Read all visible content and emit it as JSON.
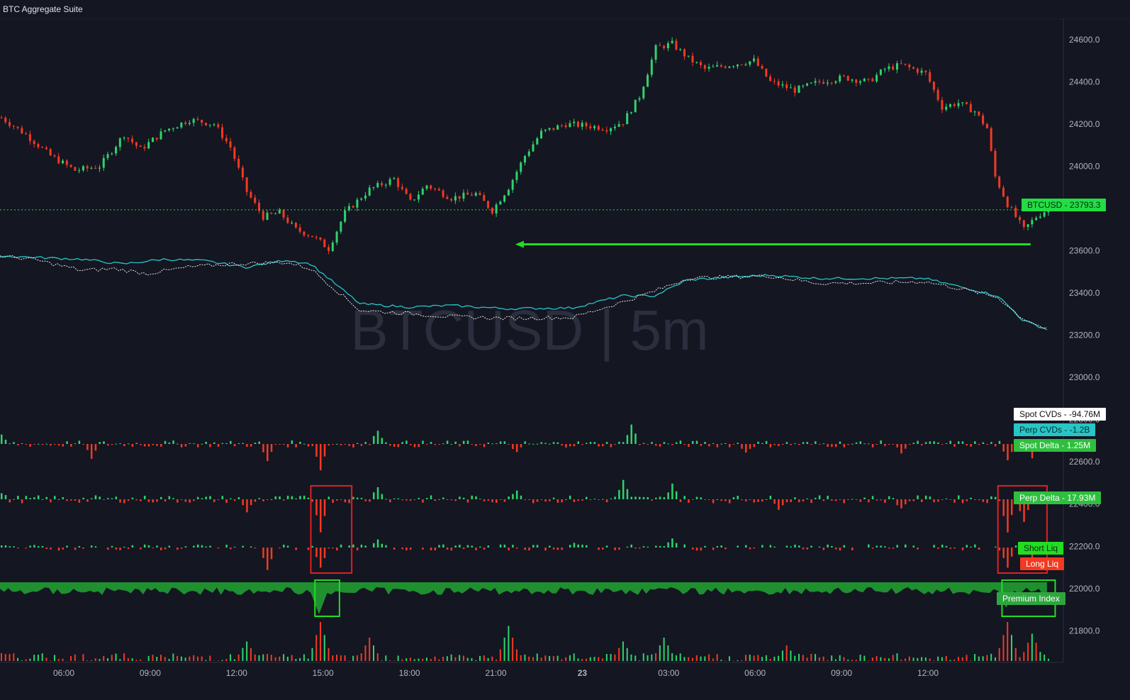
{
  "window": {
    "title": "BTC Aggregate Suite"
  },
  "watermark": "BTCUSD | 5m",
  "colors": {
    "background": "#141622",
    "up": "#2fd36b",
    "down": "#f23a22",
    "perp_cvd": "#26c6c6",
    "spot_cvd": "#e6e6e6",
    "premium_fill": "#1f8f2f",
    "highlight_red": "#e02020",
    "highlight_green": "#22dd22",
    "arrow": "#22dd22"
  },
  "price_axis": {
    "ticks": [
      "24600.0",
      "24400.0",
      "24200.0",
      "24000.0",
      "23800.0",
      "23600.0",
      "23400.0",
      "23200.0",
      "23000.0",
      "22800.0",
      "22600.0",
      "22400.0",
      "22200.0",
      "22000.0",
      "21800.0"
    ]
  },
  "time_axis": {
    "ticks": [
      "06:00",
      "09:00",
      "12:00",
      "15:00",
      "18:00",
      "21:00",
      "23",
      "03:00",
      "06:00",
      "09:00",
      "12:00"
    ]
  },
  "legend_tags": [
    {
      "label": "BTCUSD",
      "value": "23793.3",
      "bg": "#22dd44",
      "fg": "#0b2a12"
    },
    {
      "label": "Spot CVDs",
      "value": "-94.76M",
      "bg": "#ffffff",
      "fg": "#111111"
    },
    {
      "label": "Perp CVDs",
      "value": "-1.2B",
      "bg": "#26c6c6",
      "fg": "#0b2a2a"
    },
    {
      "label": "Spot Delta",
      "value": "1.25M",
      "bg": "#2fbf3f",
      "fg": "#ffffff"
    },
    {
      "label": "Perp Delta",
      "value": "17.93M",
      "bg": "#2fbf3f",
      "fg": "#ffffff"
    },
    {
      "label": "Short Liq",
      "value": "",
      "bg": "#22dd22",
      "fg": "#0b2a12"
    },
    {
      "label": "Long Liq",
      "value": "",
      "bg": "#f23a22",
      "fg": "#ffffff"
    },
    {
      "label": "Premium Index",
      "value": "",
      "bg": "#2fa53f",
      "fg": "#ffffff"
    }
  ],
  "chart_data": {
    "type": "line",
    "title": "BTCUSD | 5m",
    "symbol": "BTCUSD",
    "last_price": 23793.3,
    "price_ylim": [
      21650,
      24700
    ],
    "price_path": [
      [
        0,
        24230
      ],
      [
        6,
        24150
      ],
      [
        12,
        24050
      ],
      [
        18,
        23980
      ],
      [
        24,
        24000
      ],
      [
        30,
        24150
      ],
      [
        34,
        24080
      ],
      [
        40,
        24170
      ],
      [
        46,
        24220
      ],
      [
        52,
        24200
      ],
      [
        56,
        24090
      ],
      [
        60,
        23880
      ],
      [
        64,
        23760
      ],
      [
        68,
        23780
      ],
      [
        72,
        23700
      ],
      [
        76,
        23670
      ],
      [
        80,
        23610
      ],
      [
        84,
        23780
      ],
      [
        90,
        23890
      ],
      [
        96,
        23940
      ],
      [
        100,
        23830
      ],
      [
        104,
        23910
      ],
      [
        110,
        23850
      ],
      [
        116,
        23870
      ],
      [
        120,
        23790
      ],
      [
        124,
        23900
      ],
      [
        128,
        24050
      ],
      [
        132,
        24160
      ],
      [
        138,
        24200
      ],
      [
        144,
        24190
      ],
      [
        148,
        24180
      ],
      [
        152,
        24210
      ],
      [
        156,
        24330
      ],
      [
        160,
        24560
      ],
      [
        164,
        24580
      ],
      [
        168,
        24510
      ],
      [
        172,
        24460
      ],
      [
        178,
        24480
      ],
      [
        184,
        24500
      ],
      [
        188,
        24400
      ],
      [
        194,
        24360
      ],
      [
        200,
        24400
      ],
      [
        206,
        24420
      ],
      [
        212,
        24400
      ],
      [
        216,
        24460
      ],
      [
        220,
        24480
      ],
      [
        226,
        24440
      ],
      [
        230,
        24280
      ],
      [
        234,
        24300
      ],
      [
        238,
        24260
      ],
      [
        241,
        24180
      ],
      [
        243,
        23950
      ],
      [
        246,
        23820
      ],
      [
        250,
        23700
      ],
      [
        253,
        23760
      ],
      [
        256,
        23800
      ]
    ],
    "arrow": {
      "from_step": 252,
      "to_step": 126,
      "price": 23630
    },
    "cvd_ylim": [
      -1,
      1
    ],
    "perp_cvd_path": [
      [
        0,
        1
      ],
      [
        10,
        0.98
      ],
      [
        20,
        0.96
      ],
      [
        30,
        0.9
      ],
      [
        40,
        0.96
      ],
      [
        50,
        0.94
      ],
      [
        60,
        0.86
      ],
      [
        70,
        0.95
      ],
      [
        76,
        0.9
      ],
      [
        88,
        0.4
      ],
      [
        100,
        0.36
      ],
      [
        110,
        0.38
      ],
      [
        124,
        0.34
      ],
      [
        140,
        0.35
      ],
      [
        152,
        0.5
      ],
      [
        160,
        0.5
      ],
      [
        168,
        0.7
      ],
      [
        180,
        0.74
      ],
      [
        188,
        0.76
      ],
      [
        200,
        0.72
      ],
      [
        212,
        0.72
      ],
      [
        226,
        0.72
      ],
      [
        236,
        0.6
      ],
      [
        244,
        0.5
      ],
      [
        250,
        0.2
      ],
      [
        256,
        0.08
      ]
    ],
    "spot_cvd_path": [
      [
        0,
        1
      ],
      [
        8,
        0.96
      ],
      [
        20,
        0.82
      ],
      [
        28,
        0.84
      ],
      [
        36,
        0.78
      ],
      [
        46,
        0.86
      ],
      [
        56,
        0.9
      ],
      [
        70,
        0.92
      ],
      [
        76,
        0.84
      ],
      [
        88,
        0.32
      ],
      [
        100,
        0.28
      ],
      [
        110,
        0.24
      ],
      [
        124,
        0.22
      ],
      [
        140,
        0.23
      ],
      [
        152,
        0.42
      ],
      [
        160,
        0.56
      ],
      [
        168,
        0.72
      ],
      [
        180,
        0.74
      ],
      [
        188,
        0.75
      ],
      [
        200,
        0.66
      ],
      [
        212,
        0.66
      ],
      [
        226,
        0.68
      ],
      [
        236,
        0.58
      ],
      [
        244,
        0.48
      ],
      [
        250,
        0.22
      ],
      [
        256,
        0.08
      ]
    ],
    "spikes": {
      "spot_delta": [
        [
          0,
          0.3
        ],
        [
          22,
          -0.5
        ],
        [
          65,
          -0.6
        ],
        [
          78,
          -0.9
        ],
        [
          92,
          0.5
        ],
        [
          126,
          -0.3
        ],
        [
          154,
          0.7
        ],
        [
          182,
          -0.3
        ],
        [
          220,
          -0.3
        ],
        [
          246,
          -0.6
        ],
        [
          252,
          -0.5
        ]
      ],
      "perp_delta": [
        [
          0,
          0.2
        ],
        [
          60,
          -0.4
        ],
        [
          78,
          -1
        ],
        [
          92,
          0.4
        ],
        [
          126,
          0.3
        ],
        [
          152,
          0.6
        ],
        [
          164,
          0.5
        ],
        [
          190,
          -0.3
        ],
        [
          220,
          -0.3
        ],
        [
          246,
          -1
        ],
        [
          250,
          -0.7
        ]
      ],
      "liqs": [
        [
          0,
          0.1
        ],
        [
          65,
          -0.9
        ],
        [
          78,
          -0.8
        ],
        [
          92,
          0.3
        ],
        [
          140,
          0.2
        ],
        [
          164,
          0.4
        ],
        [
          188,
          0.1
        ],
        [
          246,
          -0.8
        ],
        [
          252,
          -0.6
        ]
      ],
      "premium": [
        [
          0,
          -0.2
        ],
        [
          40,
          -0.3
        ],
        [
          78,
          -1
        ],
        [
          100,
          -0.3
        ],
        [
          140,
          -0.3
        ],
        [
          190,
          -0.3
        ],
        [
          220,
          -0.3
        ],
        [
          246,
          -0.8
        ],
        [
          256,
          -0.6
        ]
      ],
      "volume": [
        [
          0,
          0.2
        ],
        [
          60,
          0.5
        ],
        [
          78,
          1
        ],
        [
          90,
          0.6
        ],
        [
          124,
          0.9
        ],
        [
          152,
          0.5
        ],
        [
          162,
          0.6
        ],
        [
          192,
          0.4
        ],
        [
          246,
          1
        ],
        [
          252,
          0.7
        ]
      ]
    },
    "highlights": [
      {
        "panel": "delta_liq",
        "color": "red",
        "from_step": 76,
        "to_step": 86
      },
      {
        "panel": "delta_liq",
        "color": "red",
        "from_step": 244,
        "to_step": 256
      },
      {
        "panel": "premium",
        "color": "green",
        "from_step": 77,
        "to_step": 83
      },
      {
        "panel": "premium",
        "color": "green",
        "from_step": 245,
        "to_step": 258
      }
    ],
    "xlim": [
      0,
      260
    ]
  }
}
